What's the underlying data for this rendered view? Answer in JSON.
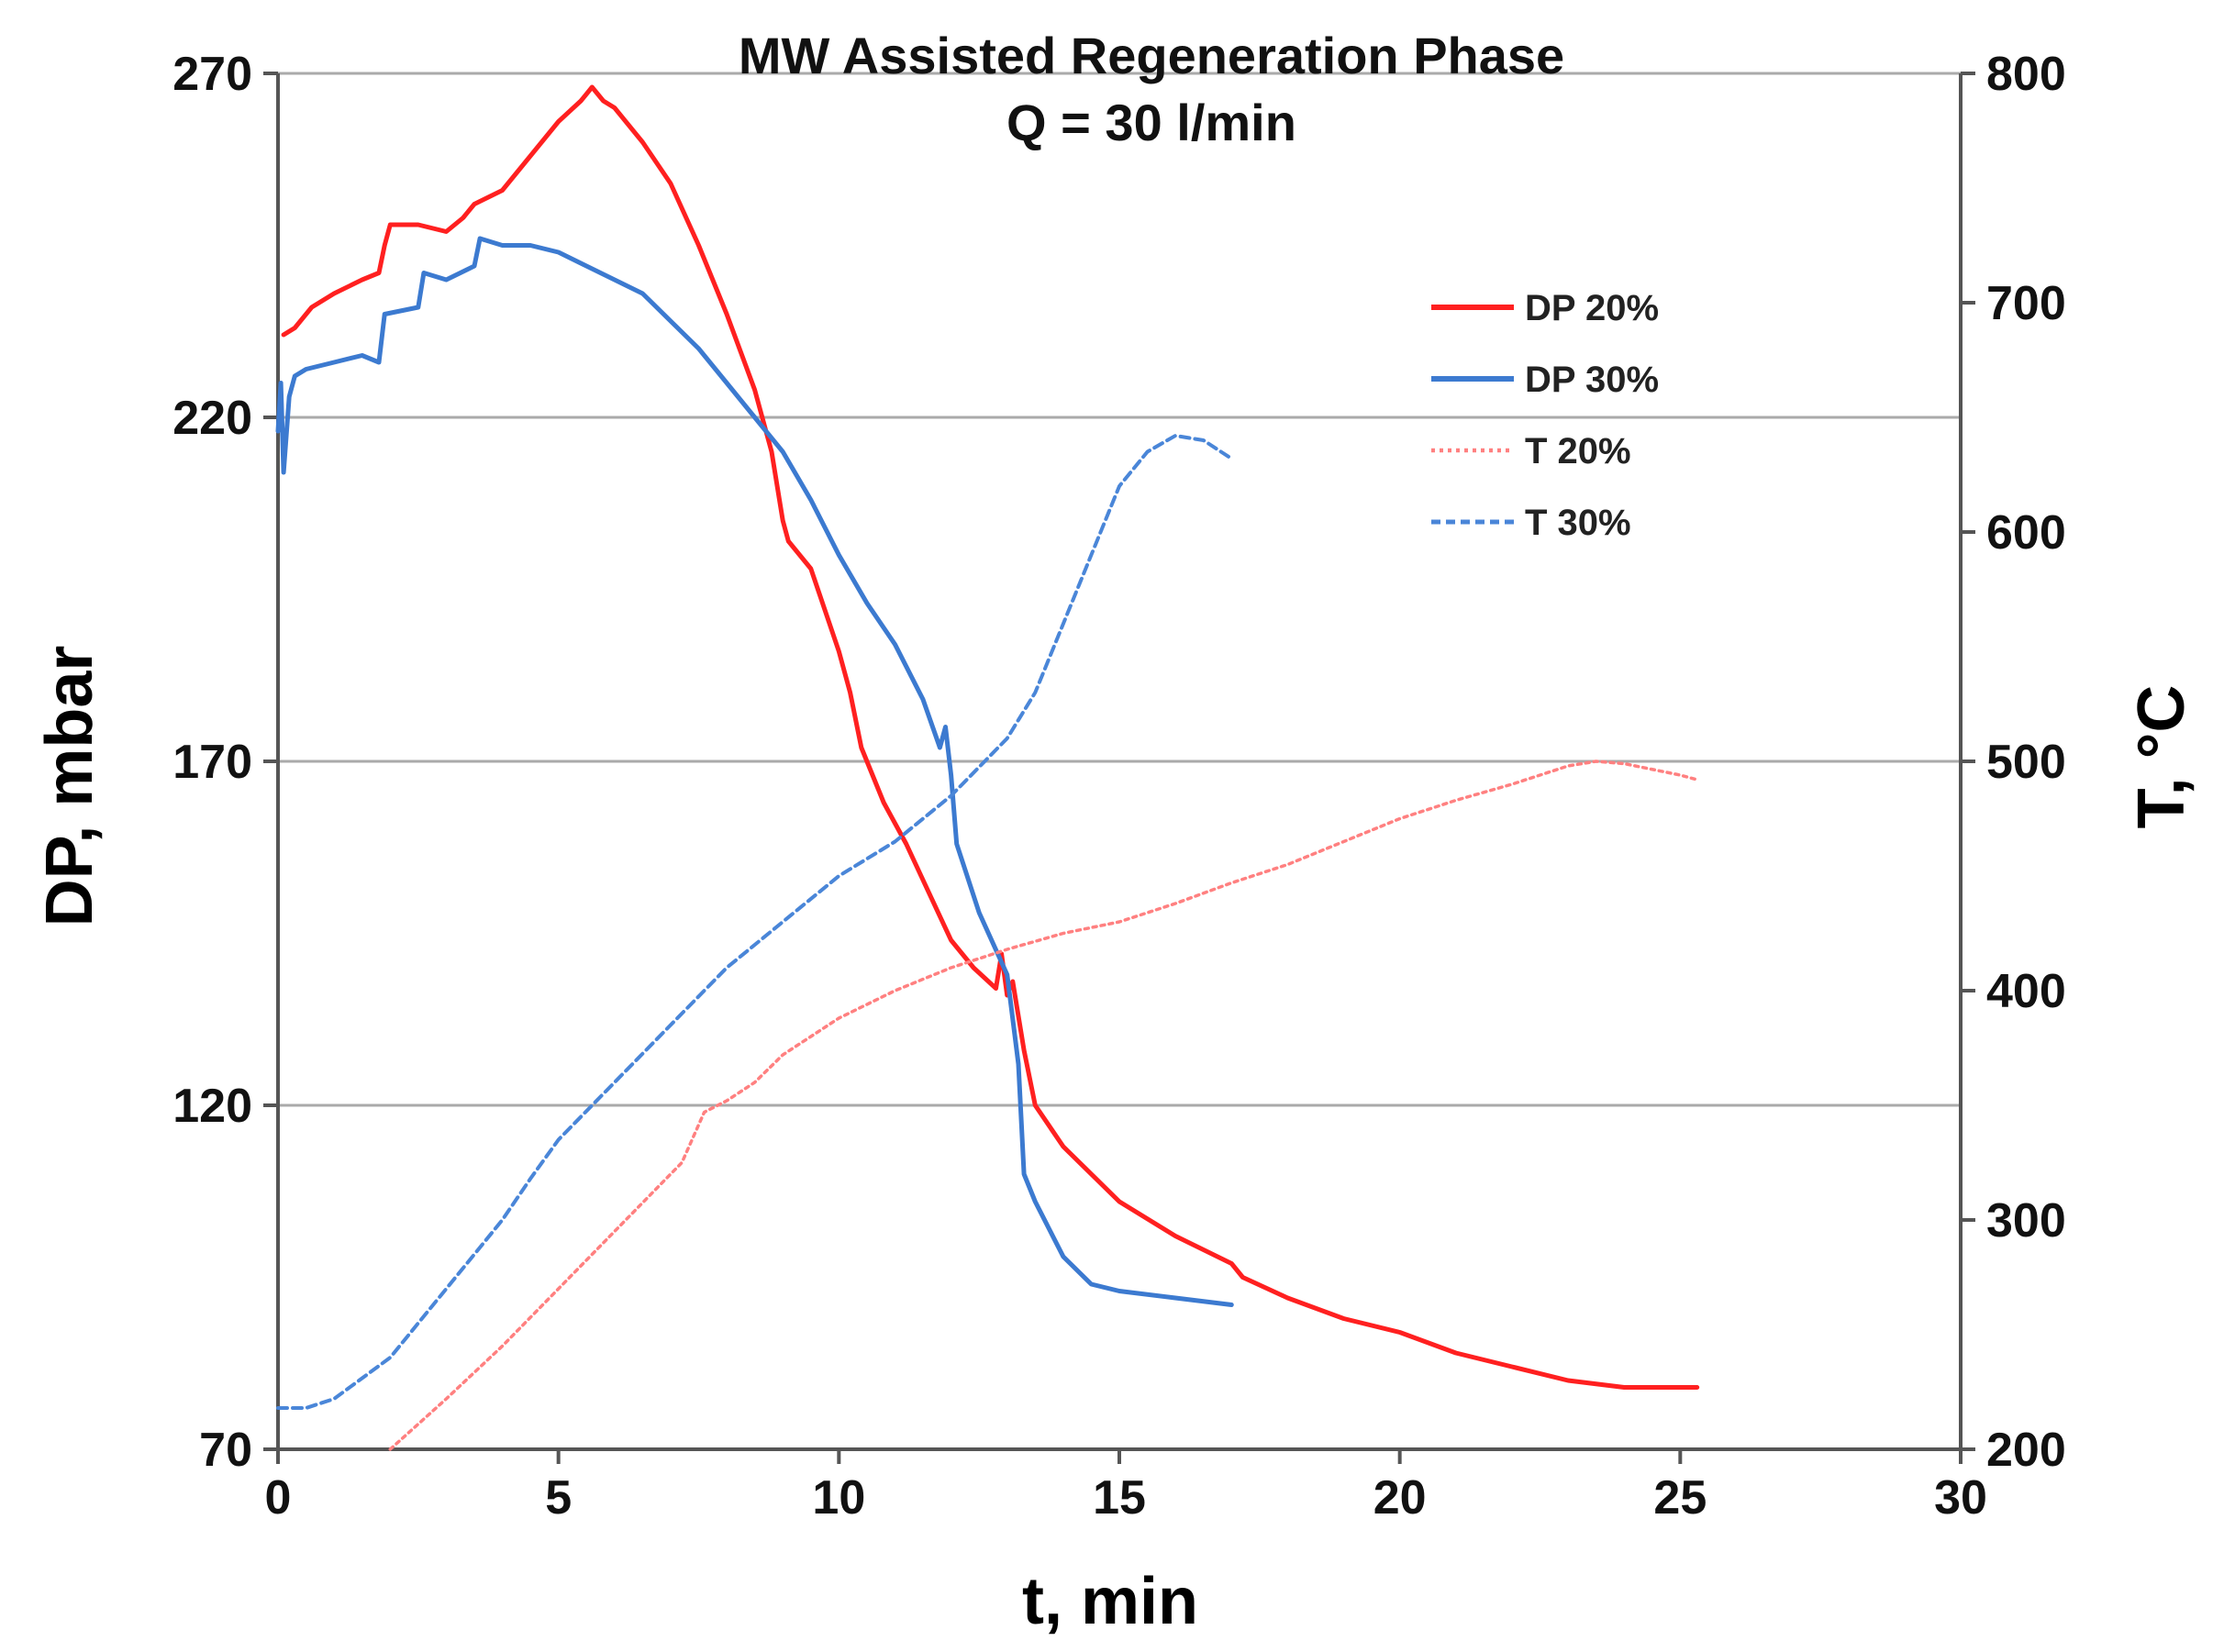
{
  "chart_data": {
    "type": "line",
    "title": "MW Assisted  Regeneration Phase",
    "subtitle": "Q = 30 l/min",
    "xlabel": "t, min",
    "ylabel": "DP, mbar",
    "y2label": "T, °C",
    "xlim": [
      0,
      30
    ],
    "ylim": [
      70,
      270
    ],
    "y2lim": [
      200,
      800
    ],
    "x_ticks": [
      "0",
      "5",
      "10",
      "15",
      "20",
      "25",
      "30"
    ],
    "y_ticks": [
      "70",
      "120",
      "170",
      "220",
      "270"
    ],
    "y2_ticks": [
      "200",
      "300",
      "400",
      "500",
      "600",
      "700",
      "800"
    ],
    "gridlines_y": [
      120,
      170,
      220,
      270
    ],
    "legend_position": "top-right",
    "colors": {
      "dp20": "#ff2020",
      "dp30": "#3c7ad0",
      "t20": "#ff8080",
      "t30": "#4a86d8",
      "grid": "#aaaaaa",
      "axis": "#555555"
    },
    "series": [
      {
        "name": "DP 20%",
        "axis": "left",
        "style": "solid",
        "x": [
          0.1,
          0.3,
          0.6,
          1.0,
          1.5,
          1.8,
          1.9,
          2.0,
          2.5,
          3.0,
          3.3,
          3.5,
          4.0,
          4.5,
          5.0,
          5.4,
          5.6,
          5.8,
          6.0,
          6.5,
          7.0,
          7.5,
          8.0,
          8.5,
          8.8,
          9.0,
          9.1,
          9.5,
          10.0,
          10.2,
          10.4,
          10.8,
          11.2,
          11.6,
          12.0,
          12.4,
          12.8,
          12.9,
          13.0,
          13.1,
          13.3,
          13.5,
          14.0,
          15.0,
          16.0,
          17.0,
          17.2,
          18.0,
          19.0,
          20.0,
          21.0,
          22.0,
          23.0,
          24.0,
          25.0,
          25.3
        ],
        "values": [
          232,
          233,
          236,
          238,
          240,
          241,
          245,
          248,
          248,
          247,
          249,
          251,
          253,
          258,
          263,
          266,
          268,
          266,
          265,
          260,
          254,
          245,
          235,
          224,
          215,
          205,
          202,
          198,
          186,
          180,
          172,
          164,
          158,
          151,
          144,
          140,
          137,
          142,
          136,
          138,
          128,
          120,
          114,
          106,
          101,
          97,
          95,
          92,
          89,
          87,
          84,
          82,
          80,
          79,
          79,
          79
        ]
      },
      {
        "name": "DP 30%",
        "axis": "left",
        "style": "solid",
        "x": [
          0.0,
          0.05,
          0.1,
          0.2,
          0.3,
          0.5,
          1.0,
          1.5,
          1.8,
          1.9,
          2.5,
          2.6,
          3.0,
          3.5,
          3.6,
          4.0,
          4.5,
          5.0,
          5.5,
          6.0,
          6.5,
          7.0,
          7.5,
          8.0,
          8.5,
          9.0,
          9.5,
          10.0,
          10.5,
          11.0,
          11.5,
          11.8,
          11.9,
          12.0,
          12.1,
          12.5,
          13.0,
          13.2,
          13.3,
          13.5,
          14.0,
          14.5,
          15.0,
          16.0,
          17.0
        ],
        "values": [
          218,
          225,
          212,
          223,
          226,
          227,
          228,
          229,
          228,
          235,
          236,
          241,
          240,
          242,
          246,
          245,
          245,
          244,
          242,
          240,
          238,
          234,
          230,
          225,
          220,
          215,
          208,
          200,
          193,
          187,
          179,
          172,
          175,
          168,
          158,
          148,
          139,
          126,
          110,
          106,
          98,
          94,
          93,
          92,
          91
        ]
      },
      {
        "name": "T 20%",
        "axis": "right",
        "style": "dotted",
        "x": [
          2.0,
          3.0,
          4.0,
          5.0,
          6.0,
          7.0,
          7.2,
          7.6,
          8.0,
          8.5,
          9.0,
          10.0,
          11.0,
          12.0,
          13.0,
          14.0,
          15.0,
          16.0,
          17.0,
          18.0,
          19.0,
          20.0,
          21.0,
          22.0,
          23.0,
          23.5,
          24.0,
          25.0,
          25.3
        ],
        "values": [
          200,
          222,
          245,
          270,
          295,
          320,
          325,
          347,
          352,
          360,
          372,
          388,
          400,
          410,
          418,
          425,
          430,
          438,
          447,
          455,
          465,
          475,
          483,
          490,
          498,
          500,
          499,
          494,
          492
        ]
      },
      {
        "name": "T 30%",
        "axis": "right",
        "style": "dashed",
        "x": [
          0.0,
          0.5,
          1.0,
          2.0,
          3.0,
          4.0,
          4.5,
          5.0,
          6.0,
          7.0,
          8.0,
          9.0,
          10.0,
          11.0,
          12.0,
          13.0,
          13.5,
          14.0,
          14.5,
          15.0,
          15.5,
          16.0,
          16.5,
          17.0
        ],
        "values": [
          218,
          218,
          222,
          240,
          270,
          300,
          318,
          335,
          360,
          385,
          410,
          430,
          450,
          465,
          485,
          510,
          530,
          560,
          590,
          620,
          635,
          642,
          640,
          632
        ]
      }
    ]
  }
}
